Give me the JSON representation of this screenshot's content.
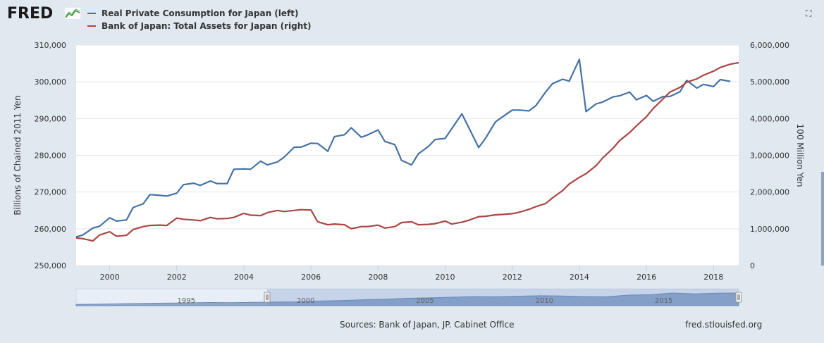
{
  "header": {
    "logo_text": "FRED",
    "logo_icon": "fred-chart-logo-icon",
    "fullscreen_icon": "fullscreen-icon"
  },
  "legend": [
    {
      "label": "Real Private Consumption for Japan (left)",
      "color": "#4572a7"
    },
    {
      "label": "Bank of Japan: Total Assets for Japan (right)",
      "color": "#aa4643"
    }
  ],
  "footer": {
    "sources": "Sources: Bank of Japan, JP. Cabinet Office",
    "site": "fred.stlouisfed.org"
  },
  "chart_data": {
    "type": "line",
    "title": "",
    "xlabel": "",
    "ylabel_left": "Billions of Chained 2011 Yen",
    "ylabel_right": "100 Million Yen",
    "xlim": [
      1999.0,
      2018.75
    ],
    "ylim_left": [
      250000,
      310000
    ],
    "ylim_right": [
      0,
      6000000
    ],
    "x_ticks": [
      "2000",
      "2002",
      "2004",
      "2006",
      "2008",
      "2010",
      "2012",
      "2014",
      "2016",
      "2018"
    ],
    "y_ticks_left": [
      "250,000",
      "260,000",
      "270,000",
      "280,000",
      "290,000",
      "300,000",
      "310,000"
    ],
    "y_ticks_right": [
      "0",
      "1,000,000",
      "2,000,000",
      "3,000,000",
      "4,000,000",
      "5,000,000",
      "6,000,000"
    ],
    "grid": true,
    "legend_position": "top-left",
    "series": [
      {
        "name": "Real Private Consumption for Japan (left)",
        "axis": "left",
        "color": "#4572a7",
        "points": [
          [
            1999.0,
            257800
          ],
          [
            1999.2,
            258300
          ],
          [
            1999.5,
            260200
          ],
          [
            1999.7,
            260700
          ],
          [
            2000.0,
            263000
          ],
          [
            2000.2,
            262100
          ],
          [
            2000.5,
            262400
          ],
          [
            2000.7,
            265800
          ],
          [
            2001.0,
            266800
          ],
          [
            2001.2,
            269300
          ],
          [
            2001.5,
            269100
          ],
          [
            2001.7,
            268900
          ],
          [
            2002.0,
            269700
          ],
          [
            2002.2,
            272000
          ],
          [
            2002.5,
            272400
          ],
          [
            2002.7,
            271800
          ],
          [
            2003.0,
            273000
          ],
          [
            2003.2,
            272300
          ],
          [
            2003.5,
            272300
          ],
          [
            2003.7,
            276200
          ],
          [
            2004.0,
            276300
          ],
          [
            2004.2,
            276200
          ],
          [
            2004.5,
            278400
          ],
          [
            2004.7,
            277400
          ],
          [
            2005.0,
            278200
          ],
          [
            2005.2,
            279500
          ],
          [
            2005.5,
            282200
          ],
          [
            2005.7,
            282200
          ],
          [
            2006.0,
            283300
          ],
          [
            2006.2,
            283200
          ],
          [
            2006.5,
            281100
          ],
          [
            2006.7,
            285100
          ],
          [
            2007.0,
            285600
          ],
          [
            2007.2,
            287500
          ],
          [
            2007.5,
            284900
          ],
          [
            2007.7,
            285600
          ],
          [
            2008.0,
            286900
          ],
          [
            2008.2,
            283800
          ],
          [
            2008.5,
            282900
          ],
          [
            2008.7,
            278600
          ],
          [
            2009.0,
            277400
          ],
          [
            2009.2,
            280400
          ],
          [
            2009.5,
            282400
          ],
          [
            2009.7,
            284300
          ],
          [
            2010.0,
            284600
          ],
          [
            2010.2,
            287300
          ],
          [
            2010.5,
            291300
          ],
          [
            2010.7,
            287600
          ],
          [
            2011.0,
            282100
          ],
          [
            2011.2,
            284600
          ],
          [
            2011.5,
            289100
          ],
          [
            2011.7,
            290400
          ],
          [
            2012.0,
            292300
          ],
          [
            2012.2,
            292300
          ],
          [
            2012.5,
            292100
          ],
          [
            2012.7,
            293500
          ],
          [
            2013.0,
            297300
          ],
          [
            2013.2,
            299500
          ],
          [
            2013.5,
            300700
          ],
          [
            2013.7,
            300200
          ],
          [
            2014.0,
            306100
          ],
          [
            2014.2,
            291900
          ],
          [
            2014.5,
            294000
          ],
          [
            2014.7,
            294500
          ],
          [
            2015.0,
            295900
          ],
          [
            2015.2,
            296200
          ],
          [
            2015.5,
            297200
          ],
          [
            2015.7,
            295100
          ],
          [
            2016.0,
            296300
          ],
          [
            2016.2,
            294700
          ],
          [
            2016.5,
            296000
          ],
          [
            2016.7,
            296000
          ],
          [
            2017.0,
            297300
          ],
          [
            2017.2,
            300400
          ],
          [
            2017.5,
            298300
          ],
          [
            2017.7,
            299300
          ],
          [
            2018.0,
            298700
          ],
          [
            2018.2,
            300600
          ],
          [
            2018.5,
            300100
          ]
        ]
      },
      {
        "name": "Bank of Japan: Total Assets for Japan (right)",
        "axis": "right",
        "color": "#aa4643",
        "points": [
          [
            1999.0,
            750000
          ],
          [
            1999.2,
            730000
          ],
          [
            1999.5,
            670000
          ],
          [
            1999.7,
            830000
          ],
          [
            2000.0,
            920000
          ],
          [
            2000.2,
            800000
          ],
          [
            2000.5,
            820000
          ],
          [
            2000.7,
            980000
          ],
          [
            2001.0,
            1060000
          ],
          [
            2001.2,
            1090000
          ],
          [
            2001.5,
            1100000
          ],
          [
            2001.7,
            1090000
          ],
          [
            2002.0,
            1290000
          ],
          [
            2002.2,
            1260000
          ],
          [
            2002.5,
            1240000
          ],
          [
            2002.7,
            1220000
          ],
          [
            2003.0,
            1310000
          ],
          [
            2003.2,
            1270000
          ],
          [
            2003.5,
            1280000
          ],
          [
            2003.7,
            1310000
          ],
          [
            2004.0,
            1420000
          ],
          [
            2004.2,
            1370000
          ],
          [
            2004.5,
            1360000
          ],
          [
            2004.7,
            1440000
          ],
          [
            2005.0,
            1500000
          ],
          [
            2005.2,
            1470000
          ],
          [
            2005.5,
            1500000
          ],
          [
            2005.7,
            1520000
          ],
          [
            2006.0,
            1510000
          ],
          [
            2006.2,
            1190000
          ],
          [
            2006.5,
            1110000
          ],
          [
            2006.7,
            1130000
          ],
          [
            2007.0,
            1110000
          ],
          [
            2007.2,
            1000000
          ],
          [
            2007.5,
            1060000
          ],
          [
            2007.7,
            1060000
          ],
          [
            2008.0,
            1100000
          ],
          [
            2008.2,
            1020000
          ],
          [
            2008.5,
            1060000
          ],
          [
            2008.7,
            1170000
          ],
          [
            2009.0,
            1190000
          ],
          [
            2009.2,
            1110000
          ],
          [
            2009.5,
            1120000
          ],
          [
            2009.7,
            1140000
          ],
          [
            2010.0,
            1210000
          ],
          [
            2010.2,
            1130000
          ],
          [
            2010.5,
            1180000
          ],
          [
            2010.7,
            1230000
          ],
          [
            2011.0,
            1330000
          ],
          [
            2011.2,
            1340000
          ],
          [
            2011.5,
            1380000
          ],
          [
            2011.7,
            1390000
          ],
          [
            2012.0,
            1410000
          ],
          [
            2012.2,
            1450000
          ],
          [
            2012.5,
            1530000
          ],
          [
            2012.7,
            1600000
          ],
          [
            2013.0,
            1690000
          ],
          [
            2013.2,
            1840000
          ],
          [
            2013.5,
            2040000
          ],
          [
            2013.7,
            2220000
          ],
          [
            2014.0,
            2400000
          ],
          [
            2014.2,
            2500000
          ],
          [
            2014.5,
            2720000
          ],
          [
            2014.7,
            2930000
          ],
          [
            2015.0,
            3190000
          ],
          [
            2015.2,
            3400000
          ],
          [
            2015.5,
            3620000
          ],
          [
            2015.7,
            3800000
          ],
          [
            2016.0,
            4050000
          ],
          [
            2016.2,
            4270000
          ],
          [
            2016.5,
            4540000
          ],
          [
            2016.7,
            4720000
          ],
          [
            2017.0,
            4850000
          ],
          [
            2017.2,
            4990000
          ],
          [
            2017.5,
            5080000
          ],
          [
            2017.7,
            5180000
          ],
          [
            2018.0,
            5290000
          ],
          [
            2018.2,
            5390000
          ],
          [
            2018.5,
            5480000
          ],
          [
            2018.75,
            5520000
          ]
        ]
      }
    ],
    "navigator": {
      "ticks": [
        "1995",
        "2000",
        "2005",
        "2010",
        "2015"
      ],
      "range": [
        1991,
        2018.75
      ],
      "selected": [
        1999.0,
        2018.75
      ],
      "values": [
        246000,
        247000,
        249000,
        251000,
        252000,
        253000,
        255000,
        254000,
        256000,
        257000,
        258000,
        262000,
        264000,
        268000,
        271000,
        275000,
        277000,
        280000,
        283000,
        282000,
        285000,
        287000,
        286000,
        283000,
        282000,
        290000,
        292000,
        300000,
        296000,
        299000,
        300000
      ]
    }
  }
}
